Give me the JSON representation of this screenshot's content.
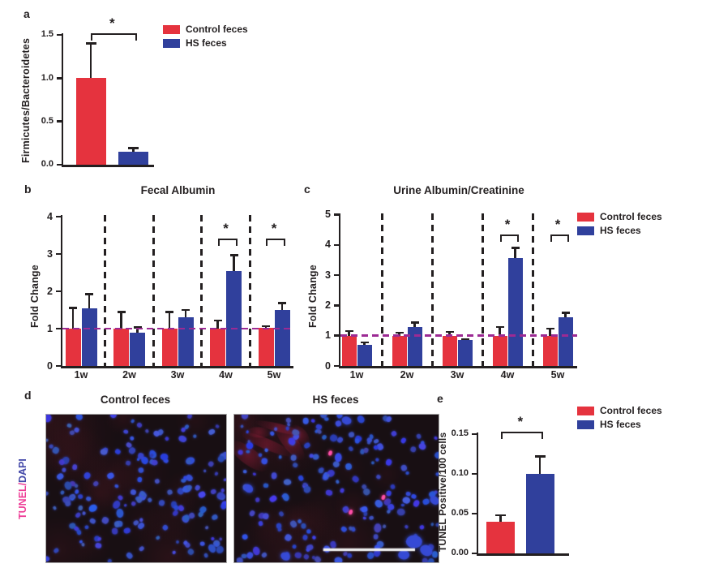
{
  "colors": {
    "control_red": "#e5333e",
    "hs_blue": "#30409c",
    "axis_black": "#231f20",
    "reference_magenta": "#9c2a94",
    "tunel_pink": "#ee3d96",
    "dapi_blue": "#4348a8",
    "scale_bar_white": "#efefef"
  },
  "legend": {
    "control_label": "Control feces",
    "hs_label": "HS feces"
  },
  "panels": {
    "a": {
      "label": "a"
    },
    "b": {
      "label": "b"
    },
    "c": {
      "label": "c"
    },
    "d": {
      "label": "d"
    },
    "e": {
      "label": "e"
    }
  },
  "chart_data": [
    {
      "id": "a",
      "type": "bar",
      "title": "",
      "ylabel": "Firmicutes/Bacteroidetes",
      "categories": [
        "Control feces",
        "HS feces"
      ],
      "values": [
        1.0,
        0.15
      ],
      "errors": [
        0.4,
        0.04
      ],
      "ylim": [
        0,
        1.5
      ],
      "yticks": [
        0,
        0.5,
        1.0,
        1.5
      ],
      "ytick_labels": [
        "0.0",
        "0.5",
        "1.0",
        "1.5"
      ],
      "significance": [
        {
          "label": "*"
        }
      ],
      "legend_position": "top-right"
    },
    {
      "id": "b",
      "type": "bar",
      "title": "Fecal Albumin",
      "ylabel": "Fold Change",
      "categories": [
        "1w",
        "2w",
        "3w",
        "4w",
        "5w"
      ],
      "series": [
        {
          "name": "Control feces",
          "values": [
            1.0,
            1.0,
            1.0,
            1.0,
            1.03
          ],
          "errors": [
            0.55,
            0.45,
            0.45,
            0.22,
            0.04
          ]
        },
        {
          "name": "HS feces",
          "values": [
            1.55,
            0.9,
            1.3,
            2.55,
            1.5
          ],
          "errors": [
            0.37,
            0.13,
            0.2,
            0.42,
            0.18
          ]
        }
      ],
      "ylim": [
        0,
        4
      ],
      "yticks": [
        0,
        1,
        2,
        3,
        4
      ],
      "ytick_labels": [
        "0",
        "1",
        "2",
        "3",
        "4"
      ],
      "reference_line": 1.0,
      "grid": "dashed-group-separators",
      "significance": [
        {
          "group": 3,
          "label": "*"
        },
        {
          "group": 4,
          "label": "*"
        }
      ]
    },
    {
      "id": "c",
      "type": "bar",
      "title": "Urine Albumin/Creatinine",
      "ylabel": "Fold Change",
      "categories": [
        "1w",
        "2w",
        "3w",
        "4w",
        "5w"
      ],
      "series": [
        {
          "name": "Control feces",
          "values": [
            1.0,
            1.0,
            1.0,
            1.0,
            1.0
          ],
          "errors": [
            0.15,
            0.1,
            0.12,
            0.29,
            0.23
          ]
        },
        {
          "name": "HS feces",
          "values": [
            0.7,
            1.28,
            0.85,
            3.57,
            1.6
          ],
          "errors": [
            0.08,
            0.15,
            0.03,
            0.33,
            0.16
          ]
        }
      ],
      "ylim": [
        0,
        5
      ],
      "yticks": [
        0,
        1,
        2,
        3,
        4,
        5
      ],
      "ytick_labels": [
        "0",
        "1",
        "2",
        "3",
        "4",
        "5"
      ],
      "reference_line": 1.0,
      "grid": "dashed-group-separators",
      "significance": [
        {
          "group": 3,
          "label": "*"
        },
        {
          "group": 4,
          "label": "*"
        }
      ],
      "legend_position": "top-right"
    },
    {
      "id": "e",
      "type": "bar",
      "title": "",
      "ylabel": "TUNEL Positive/100 cells",
      "categories": [
        "Control feces",
        "HS feces"
      ],
      "values": [
        0.04,
        0.1
      ],
      "errors": [
        0.008,
        0.022
      ],
      "ylim": [
        0,
        0.15
      ],
      "yticks": [
        0,
        0.05,
        0.1,
        0.15
      ],
      "ytick_labels": [
        "0.00",
        "0.05",
        "0.10",
        "0.15"
      ],
      "significance": [
        {
          "label": "*"
        }
      ],
      "legend_position": "top-right"
    }
  ],
  "microscopy": {
    "side_label": {
      "tunel": "TUNEL/",
      "dapi": "DAPI"
    },
    "images": [
      {
        "title": "Control feces",
        "stain": "DAPI nuclei (blue)",
        "seed": 7,
        "dots": 160,
        "tunel_spots": [],
        "red_smear": false,
        "dense_clusters": false,
        "scale_bar": false
      },
      {
        "title": "HS feces",
        "stain": "DAPI nuclei (blue) + TUNEL (pink)",
        "seed": 13,
        "dots": 170,
        "tunel_spots": [
          [
            0.47,
            0.26
          ],
          [
            0.57,
            0.66
          ],
          [
            0.73,
            0.56
          ]
        ],
        "red_smear": true,
        "dense_clusters": true,
        "scale_bar": true
      }
    ]
  }
}
